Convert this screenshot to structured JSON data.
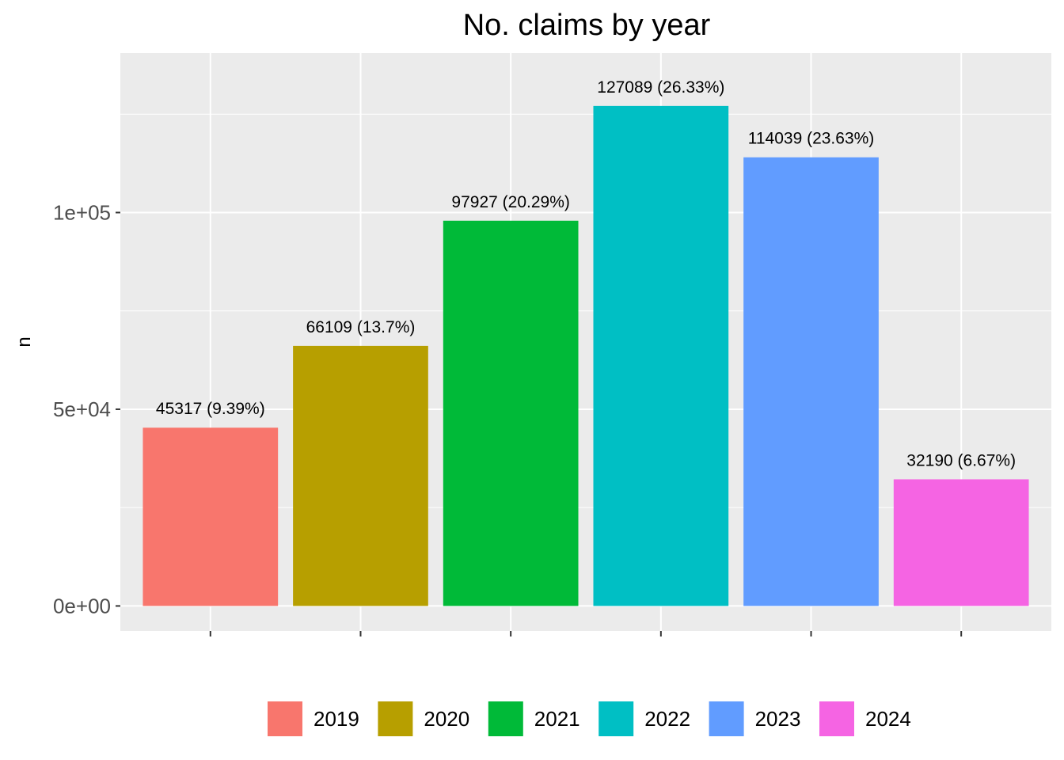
{
  "chart_data": {
    "type": "bar",
    "title": "No. claims by year",
    "xlabel": "",
    "ylabel": "n",
    "categories": [
      "2019",
      "2020",
      "2021",
      "2022",
      "2023",
      "2024"
    ],
    "values": [
      45317,
      66109,
      97927,
      127089,
      114039,
      32190
    ],
    "data_labels": [
      "45317 (9.39%)",
      "66109 (13.7%)",
      "97927 (20.29%)",
      "127089 (26.33%)",
      "114039 (23.63%)",
      "32190 (6.67%)"
    ],
    "colors": [
      "#F8766D",
      "#B79F00",
      "#00BA38",
      "#00BFC4",
      "#619CFF",
      "#F564E3"
    ],
    "yticks": [
      0,
      50000,
      100000
    ],
    "ytick_labels": [
      "0e+00",
      "5e+04",
      "1e+05"
    ],
    "ylim": [
      -6354.45,
      140543.45
    ],
    "x_tick_labels_visible": false,
    "grid": true,
    "panel_background": "#EBEBEB",
    "legend": {
      "placement": "bottom",
      "entries": [
        "2019",
        "2020",
        "2021",
        "2022",
        "2023",
        "2024"
      ]
    }
  }
}
